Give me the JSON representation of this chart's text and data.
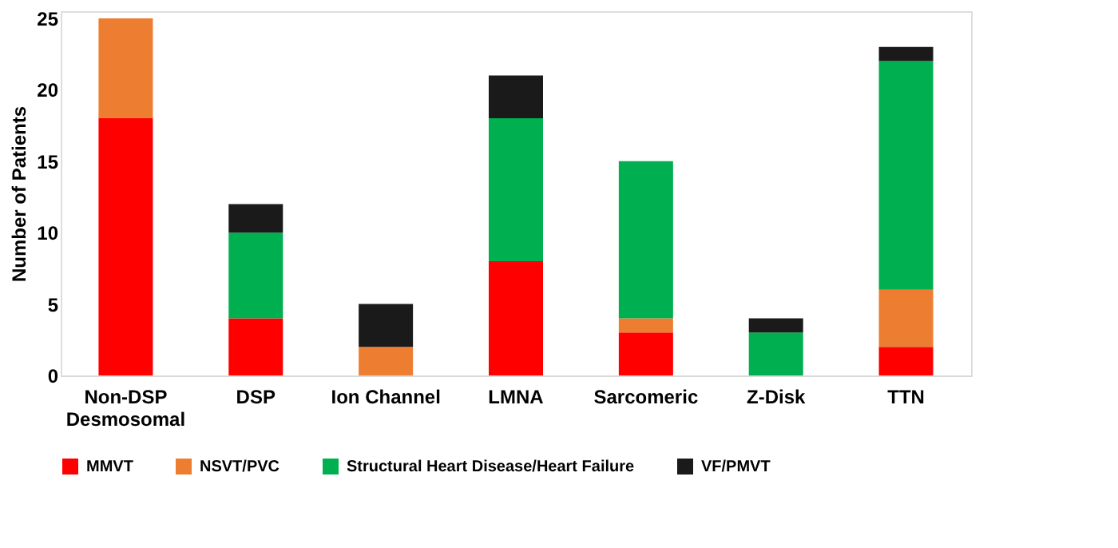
{
  "chart_data": {
    "type": "bar",
    "stacked": true,
    "ylabel": "Number of Patients",
    "categories": [
      "Non-DSP\nDesmosomal",
      "DSP",
      "Ion Channel",
      "LMNA",
      "Sarcomeric",
      "Z-Disk",
      "TTN"
    ],
    "series": [
      {
        "name": "MMVT",
        "color": "#ff0000",
        "values": [
          18,
          4,
          0,
          8,
          3,
          0,
          2
        ]
      },
      {
        "name": "NSVT/PVC",
        "color": "#ed7d31",
        "values": [
          7,
          0,
          2,
          0,
          1,
          0,
          4
        ]
      },
      {
        "name": "Structural Heart Disease/Heart Failure",
        "color": "#00b050",
        "values": [
          0,
          6,
          0,
          10,
          11,
          3,
          16
        ]
      },
      {
        "name": "VF/PMVT",
        "color": "#1a1a1a",
        "values": [
          0,
          2,
          3,
          3,
          0,
          1,
          1
        ]
      }
    ],
    "ylim": [
      0,
      25.5
    ],
    "yticks": [
      0,
      5,
      10,
      15,
      20,
      25
    ],
    "grid": false,
    "legend": "bottom"
  }
}
